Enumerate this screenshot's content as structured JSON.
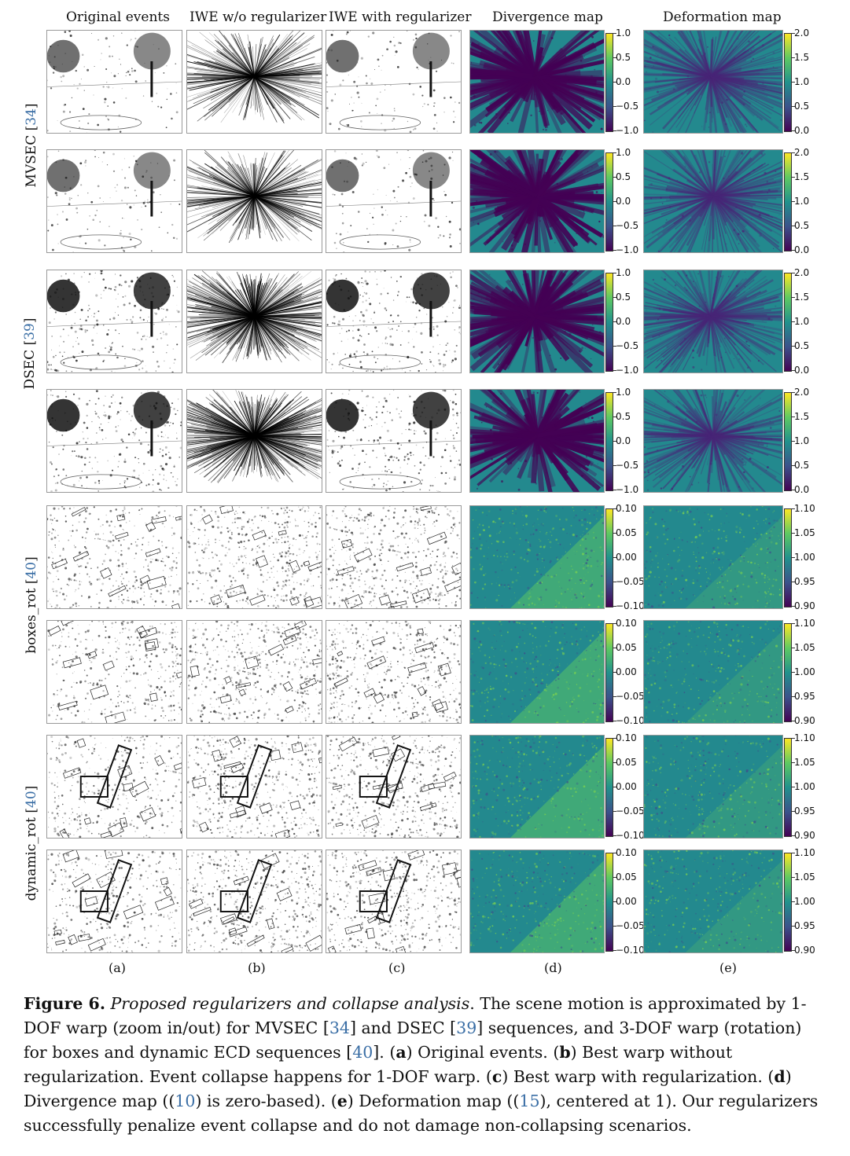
{
  "column_headers": [
    "Original events",
    "IWE w/o regularizer",
    "IWE with regularizer",
    "Divergence map",
    "Deformation map"
  ],
  "row_groups": [
    {
      "name": "MVSEC",
      "ref": "34"
    },
    {
      "name": "DSEC",
      "ref": "39"
    },
    {
      "name": "boxes_rot",
      "ref": "40"
    },
    {
      "name": "dynamic_rot",
      "ref": "40"
    }
  ],
  "colorbars": {
    "divergence_1dof": [
      "1.0",
      "0.5",
      "0.0",
      "−0.5",
      "−1.0"
    ],
    "deformation_1dof": [
      "2.0",
      "1.5",
      "1.0",
      "0.5",
      "0.0"
    ],
    "divergence_3dof": [
      "0.10",
      "0.05",
      "0.00",
      "−0.05",
      "−0.10"
    ],
    "deformation_3dof": [
      "1.10",
      "1.05",
      "1.00",
      "0.95",
      "0.90"
    ]
  },
  "sublabels": [
    "(a)",
    "(b)",
    "(c)",
    "(d)",
    "(e)"
  ],
  "caption": {
    "label": "Figure 6.",
    "title": "Proposed regularizers and collapse analysis",
    "t1": ". The scene motion is approximated by 1-DOF warp (zoom in/out) for MVSEC [",
    "r1": "34",
    "t2": "] and DSEC [",
    "r2": "39",
    "t3": "] sequences, and 3-DOF warp (rotation) for boxes and dynamic ECD sequences [",
    "r3": "40",
    "t4": "]. (",
    "a": "a",
    "ta": ") Original events. (",
    "b": "b",
    "tb": ") Best warp without regularization. Event collapse happens for 1-DOF warp. (",
    "c": "c",
    "tc": ") Best warp with regularization. (",
    "d": "d",
    "td": ") Divergence map ((",
    "r4": "10",
    "t5": ") is zero-based). (",
    "e": "e",
    "te": ") Deformation map ((",
    "r5": "15",
    "t6": "), centered at 1). Our regularizers successfully penalize event collapse and do not damage non-collapsing scenarios."
  }
}
